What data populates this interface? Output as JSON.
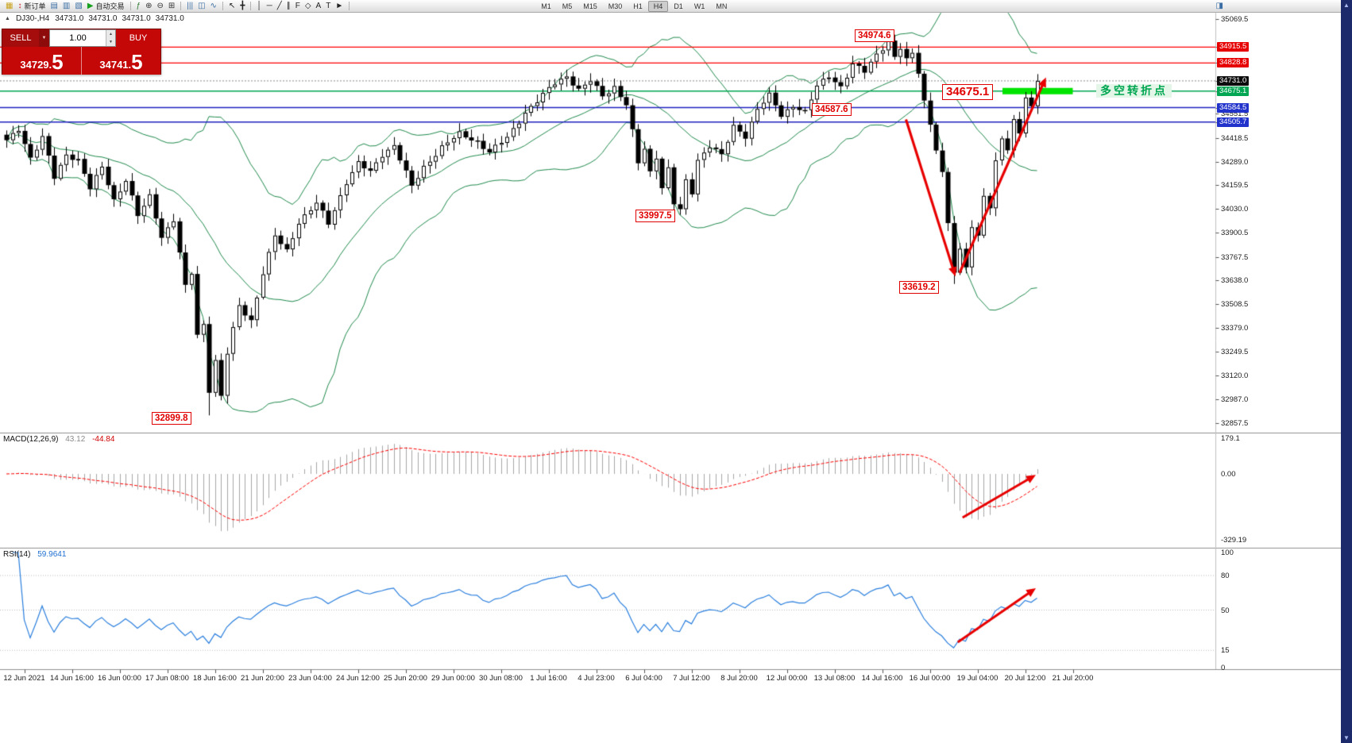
{
  "toolbar": {
    "items": [
      {
        "t": "icon",
        "name": "new-chart-icon",
        "g": "▦",
        "c": "#caa31a"
      },
      {
        "t": "btn",
        "name": "new-order-button",
        "g": "↕",
        "gc": "#cc2222",
        "label": "新订单"
      },
      {
        "t": "icon",
        "name": "market-watch-icon",
        "g": "▤",
        "c": "#3a6ea5"
      },
      {
        "t": "icon",
        "name": "data-window-icon",
        "g": "▥",
        "c": "#3a6ea5"
      },
      {
        "t": "icon",
        "name": "navigator-icon",
        "c": "#3a6ea5",
        "g": "▧"
      },
      {
        "t": "btn",
        "name": "autotrading-button",
        "g": "▶",
        "gc": "#18a11e",
        "label": "自动交易"
      },
      {
        "t": "sep"
      },
      {
        "t": "icon",
        "name": "indicators-icon",
        "g": "ƒ",
        "c": "#2e7d32"
      },
      {
        "t": "icon",
        "name": "zoom-in-icon",
        "g": "⊕",
        "c": "#333333"
      },
      {
        "t": "icon",
        "name": "zoom-out-icon",
        "g": "⊖",
        "c": "#333333"
      },
      {
        "t": "icon",
        "name": "tile-windows-icon",
        "g": "⊞",
        "c": "#333333"
      },
      {
        "t": "sep"
      },
      {
        "t": "icon",
        "name": "bar-chart-icon",
        "g": "|||",
        "c": "#3a6ea5"
      },
      {
        "t": "icon",
        "name": "candlestick-chart-icon",
        "g": "◫",
        "c": "#3a6ea5"
      },
      {
        "t": "icon",
        "name": "line-chart-icon",
        "g": "∿",
        "c": "#3a6ea5"
      },
      {
        "t": "sep"
      },
      {
        "t": "icon",
        "name": "cursor-icon",
        "g": "↖",
        "c": "#222222"
      },
      {
        "t": "icon",
        "name": "crosshair-icon",
        "g": "╋",
        "c": "#222222"
      },
      {
        "t": "sep"
      },
      {
        "t": "icon",
        "name": "vertical-line-icon",
        "g": "│",
        "c": "#222222"
      },
      {
        "t": "icon",
        "name": "horizontal-line-icon",
        "g": "─",
        "c": "#222222"
      },
      {
        "t": "icon",
        "name": "trendline-icon",
        "g": "╱",
        "c": "#222222"
      },
      {
        "t": "icon",
        "name": "channel-icon",
        "g": "∥",
        "c": "#222222"
      },
      {
        "t": "icon",
        "name": "fibonacci-icon",
        "g": "F",
        "c": "#222222"
      },
      {
        "t": "icon",
        "name": "shapes-icon",
        "g": "◇",
        "c": "#222222"
      },
      {
        "t": "icon",
        "name": "text-icon",
        "g": "A",
        "c": "#222222"
      },
      {
        "t": "icon",
        "name": "label-icon",
        "g": "T",
        "c": "#222222"
      },
      {
        "t": "icon",
        "name": "arrows-icon",
        "g": "►",
        "c": "#222222"
      },
      {
        "t": "sep"
      }
    ],
    "timeframes": [
      "M1",
      "M5",
      "M15",
      "M30",
      "H1",
      "H4",
      "D1",
      "W1",
      "MN"
    ],
    "active_timeframe": "H4",
    "right_icon_glyph": "◨"
  },
  "chart_header": {
    "marker": "▲",
    "symbol": "DJ30-,H4",
    "open": "34731.0",
    "high": "34731.0",
    "low": "34731.0",
    "close": "34731.0"
  },
  "trade_panel": {
    "sell_label": "SELL",
    "buy_label": "BUY",
    "dropdown_glyph": "▼",
    "volume": "1.00",
    "spin_up": "▲",
    "spin_down": "▼",
    "sell_price_main": "34729.",
    "sell_price_big": "5",
    "buy_price_main": "34741.",
    "buy_price_big": "5"
  },
  "annotations": {
    "swing_high": "34974.6",
    "turning_price": "34675.1",
    "support_mid": "34587.6",
    "swing_low_july": "33997.5",
    "swing_low_recent": "33619.2",
    "swing_low_june": "32899.8",
    "turning_point_text": "多空转折点"
  },
  "price_axis": {
    "plain": [
      "35069.5",
      "34551.5",
      "34418.5",
      "34289.0",
      "34159.5",
      "34030.0",
      "33900.5",
      "33767.5",
      "33638.0",
      "33508.5",
      "33379.0",
      "33249.5",
      "33120.0",
      "32987.0",
      "32857.5"
    ],
    "tagged": [
      {
        "value": "34915.5",
        "type": "red"
      },
      {
        "value": "34828.8",
        "type": "red"
      },
      {
        "value": "34731.0",
        "type": "black"
      },
      {
        "value": "34675.1",
        "type": "green"
      },
      {
        "value": "34584.5",
        "type": "blue"
      },
      {
        "value": "34505.7",
        "type": "blue"
      }
    ]
  },
  "time_axis": [
    "12 Jun 2021",
    "14 Jun 16:00",
    "16 Jun 00:00",
    "17 Jun 08:00",
    "18 Jun 16:00",
    "21 Jun 20:00",
    "23 Jun 04:00",
    "24 Jun 12:00",
    "25 Jun 20:00",
    "29 Jun 00:00",
    "30 Jun 08:00",
    "1 Jul 16:00",
    "4 Jul 23:00",
    "6 Jul 04:00",
    "7 Jul 12:00",
    "8 Jul 20:00",
    "12 Jul 00:00",
    "13 Jul 08:00",
    "14 Jul 16:00",
    "16 Jul 00:00",
    "19 Jul 04:00",
    "20 Jul 12:00",
    "21 Jul 20:00"
  ],
  "macd_panel": {
    "label": "MACD(12,26,9)",
    "value_main": "43.12",
    "value_signal": "-44.84",
    "axis": [
      "179.1",
      "0.00",
      "-329.19"
    ]
  },
  "rsi_panel": {
    "label": "RSI(14)",
    "value": "59.9641",
    "axis": [
      "100",
      "80",
      "50",
      "15",
      "0"
    ]
  },
  "scrollbar": {
    "up": "▲",
    "down": "▼"
  },
  "colors": {
    "bollinger": "#1f8a4c",
    "resistance_line": "#ff0000",
    "turning_line": "#00a651",
    "support_line": "#2020c0",
    "highlight": "#00e400",
    "macd_hist": "#a6a6a6",
    "macd_signal": "#ff0000",
    "rsi_line": "#2a7fde",
    "arrow": "#e80000"
  },
  "chart_data": {
    "type": "candlestick",
    "symbol": "DJ30",
    "timeframe": "H4",
    "bars": 174,
    "price_axis_range": [
      32857.5,
      35069.5
    ],
    "last_close": 34731.0,
    "bid": 34729.5,
    "ask": 34741.5,
    "levels": {
      "resistance": [
        34915.5,
        34828.8
      ],
      "turning_point": 34675.1,
      "support": [
        34584.5,
        34505.7
      ],
      "current": 34731.0
    },
    "key_points": {
      "swing_high": 34974.6,
      "turning_price": 34675.1,
      "support_mid": 34587.6,
      "swing_low_july": 33997.5,
      "swing_low_recent": 33619.2,
      "swing_low_june": 32899.8
    },
    "close_keypoints": [
      [
        0,
        34400
      ],
      [
        2,
        34470
      ],
      [
        4,
        34310
      ],
      [
        6,
        34420
      ],
      [
        8,
        34200
      ],
      [
        10,
        34330
      ],
      [
        12,
        34300
      ],
      [
        14,
        34140
      ],
      [
        16,
        34260
      ],
      [
        18,
        34080
      ],
      [
        20,
        34190
      ],
      [
        22,
        33990
      ],
      [
        24,
        34100
      ],
      [
        26,
        33880
      ],
      [
        28,
        33970
      ],
      [
        30,
        33600
      ],
      [
        31,
        33680
      ],
      [
        32,
        33340
      ],
      [
        33,
        33400
      ],
      [
        34,
        33040
      ],
      [
        35,
        33200
      ],
      [
        36,
        33000
      ],
      [
        37,
        33240
      ],
      [
        39,
        33500
      ],
      [
        41,
        33420
      ],
      [
        43,
        33680
      ],
      [
        45,
        33880
      ],
      [
        47,
        33800
      ],
      [
        49,
        33960
      ],
      [
        52,
        34060
      ],
      [
        54,
        33950
      ],
      [
        57,
        34180
      ],
      [
        59,
        34280
      ],
      [
        61,
        34230
      ],
      [
        63,
        34330
      ],
      [
        65,
        34380
      ],
      [
        68,
        34150
      ],
      [
        70,
        34260
      ],
      [
        73,
        34370
      ],
      [
        76,
        34440
      ],
      [
        79,
        34400
      ],
      [
        81,
        34340
      ],
      [
        84,
        34420
      ],
      [
        87,
        34560
      ],
      [
        89,
        34620
      ],
      [
        92,
        34720
      ],
      [
        94,
        34760
      ],
      [
        96,
        34680
      ],
      [
        98,
        34730
      ],
      [
        100,
        34650
      ],
      [
        102,
        34700
      ],
      [
        104,
        34600
      ],
      [
        105,
        34450
      ],
      [
        106,
        34280
      ],
      [
        107,
        34360
      ],
      [
        108,
        34230
      ],
      [
        109,
        34320
      ],
      [
        110,
        34150
      ],
      [
        111,
        34250
      ],
      [
        112,
        34060
      ],
      [
        113,
        34020
      ],
      [
        114,
        34180
      ],
      [
        115,
        34120
      ],
      [
        116,
        34300
      ],
      [
        118,
        34380
      ],
      [
        120,
        34320
      ],
      [
        122,
        34480
      ],
      [
        124,
        34430
      ],
      [
        126,
        34580
      ],
      [
        128,
        34650
      ],
      [
        130,
        34540
      ],
      [
        132,
        34600
      ],
      [
        134,
        34560
      ],
      [
        136,
        34700
      ],
      [
        138,
        34760
      ],
      [
        140,
        34700
      ],
      [
        142,
        34820
      ],
      [
        144,
        34780
      ],
      [
        146,
        34880
      ],
      [
        148,
        34950
      ],
      [
        149,
        34860
      ],
      [
        150,
        34910
      ],
      [
        151,
        34840
      ],
      [
        152,
        34880
      ],
      [
        153,
        34780
      ],
      [
        154,
        34620
      ],
      [
        155,
        34500
      ],
      [
        156,
        34360
      ],
      [
        157,
        34220
      ],
      [
        158,
        33950
      ],
      [
        159,
        33680
      ],
      [
        160,
        33800
      ],
      [
        161,
        33720
      ],
      [
        162,
        33940
      ],
      [
        163,
        33880
      ],
      [
        164,
        34110
      ],
      [
        165,
        34030
      ],
      [
        166,
        34280
      ],
      [
        167,
        34420
      ],
      [
        168,
        34350
      ],
      [
        169,
        34520
      ],
      [
        170,
        34460
      ],
      [
        171,
        34640
      ],
      [
        172,
        34590
      ],
      [
        173,
        34731
      ]
    ],
    "forced_extremes": [
      {
        "bar": 34,
        "low": 32899.8
      },
      {
        "bar": 113,
        "low": 33997.5
      },
      {
        "bar": 148,
        "high": 34974.6
      },
      {
        "bar": 159,
        "low": 33619.2
      }
    ],
    "indicators": {
      "bollinger": {
        "period": 20,
        "deviation": 2
      },
      "macd": {
        "fast": 12,
        "slow": 26,
        "signal": 9,
        "last_main": 43.12,
        "last_signal": -44.84,
        "scale": [
          -329.19,
          179.1
        ]
      },
      "rsi": {
        "period": 14,
        "last": 59.9641,
        "levels": [
          15,
          50,
          80
        ],
        "scale": [
          0,
          100
        ]
      }
    },
    "drawings": {
      "price_down_arrow": {
        "from_bar": 151,
        "from_price": 34520,
        "to_bar": 159.3,
        "to_price": 33660
      },
      "price_up_arrow": {
        "from_bar": 160,
        "from_price": 33680,
        "to_bar": 174.5,
        "to_price": 34750
      },
      "macd_up_arrow": {
        "from_bar": 160.5,
        "from_val": -219,
        "to_bar": 172.8,
        "to_val": -5
      },
      "rsi_up_arrow": {
        "from_bar": 159.7,
        "from_val": 22,
        "to_bar": 172.8,
        "to_val": 69
      },
      "turning_highlight": {
        "from_bar": 167.2,
        "to_bar": 179,
        "price": 34675.1
      }
    }
  }
}
